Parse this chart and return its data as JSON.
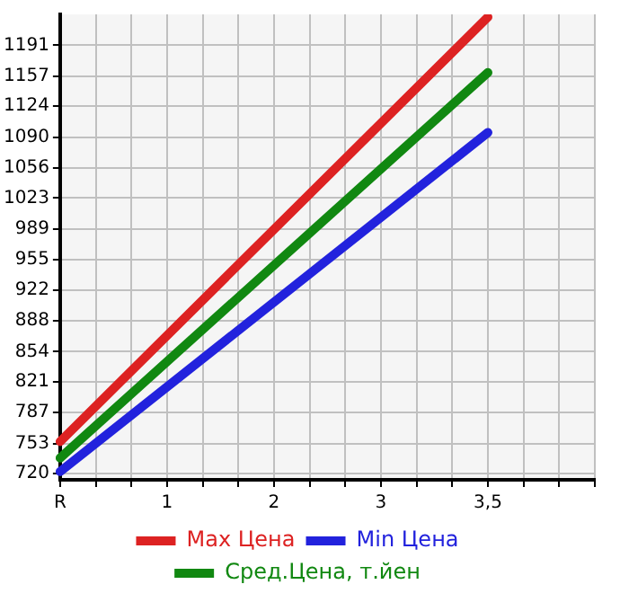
{
  "chart_data": {
    "type": "line",
    "categories": [
      "R",
      null,
      null,
      "1",
      null,
      null,
      "2",
      null,
      null,
      "3",
      null,
      null,
      "3,5",
      null,
      null,
      null
    ],
    "series": [
      {
        "name": "Max Цена",
        "color": "#dd2222",
        "values": [
          755,
          null,
          null,
          null,
          null,
          null,
          null,
          null,
          null,
          null,
          null,
          null,
          1222,
          null,
          null,
          null
        ]
      },
      {
        "name": "Min Цена",
        "color": "#2222dd",
        "values": [
          722,
          null,
          null,
          null,
          null,
          null,
          null,
          null,
          null,
          null,
          null,
          null,
          1095,
          null,
          null,
          null
        ]
      },
      {
        "name": "Сред.Цена, т.йен",
        "color": "#118811",
        "values": [
          737,
          null,
          null,
          null,
          null,
          null,
          null,
          null,
          null,
          null,
          null,
          null,
          1161,
          null,
          null,
          null
        ]
      }
    ],
    "ylim": [
      713,
      1225
    ],
    "yticks": [
      720,
      753,
      787,
      821,
      854,
      888,
      922,
      955,
      989,
      1023,
      1056,
      1090,
      1124,
      1157,
      1191
    ],
    "grid": true,
    "legend": "bottom",
    "marker": "none",
    "line_style": "solid"
  }
}
